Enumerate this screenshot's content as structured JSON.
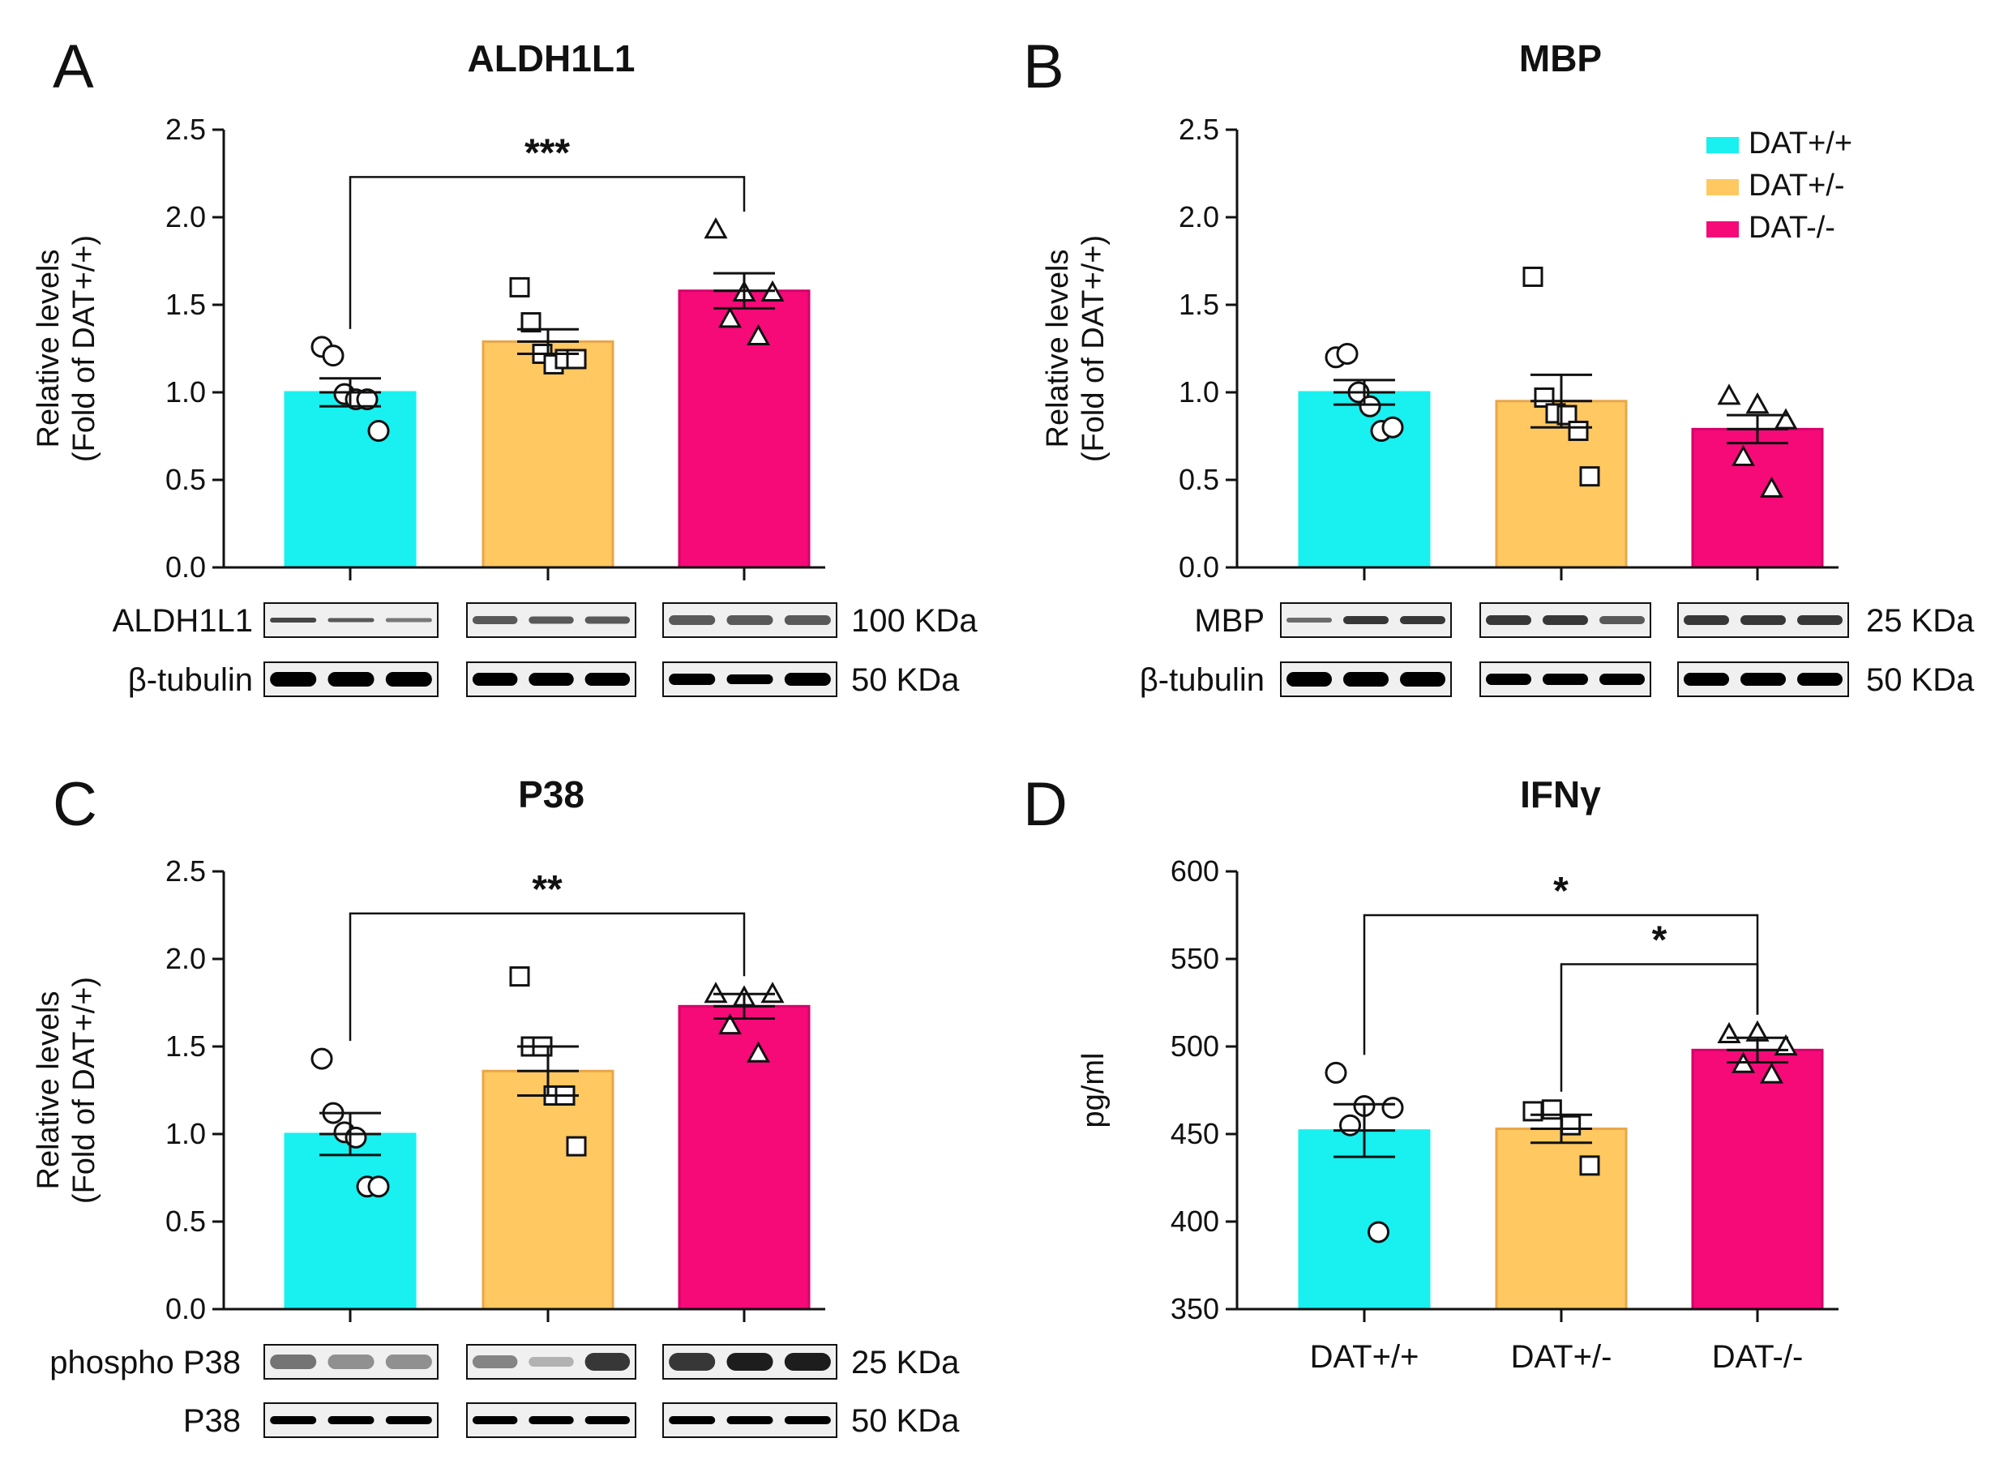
{
  "colors": {
    "wt": "#19F0F0",
    "het": "#FFC861",
    "het_stroke": "#E8A64A",
    "ko": "#F50A78",
    "ko_stroke": "#D6006A",
    "axis": "#111111"
  },
  "legend": {
    "items": [
      "DAT+/+",
      "DAT+/-",
      "DAT-/-"
    ]
  },
  "chart_data": [
    {
      "id": "A",
      "letter": "A",
      "type": "bar",
      "title": "ALDH1L1",
      "ylabel": [
        "Relative levels",
        "(Fold of DAT+/+)"
      ],
      "ylim": [
        0,
        2.5
      ],
      "yticks": [
        "0.0",
        "0.5",
        "1.0",
        "1.5",
        "2.0",
        "2.5"
      ],
      "categories": [
        "DAT+/+",
        "DAT+/-",
        "DAT-/-"
      ],
      "values": [
        1.0,
        1.29,
        1.58
      ],
      "sem": [
        0.08,
        0.07,
        0.1
      ],
      "points": [
        [
          1.26,
          1.21,
          0.99,
          0.96,
          0.96,
          0.78
        ],
        [
          1.6,
          1.4,
          1.22,
          1.16,
          1.19,
          1.19
        ],
        [
          1.93,
          1.57,
          1.57,
          1.42,
          1.32
        ]
      ],
      "comparisons": [
        {
          "from": 0,
          "to": 2,
          "label": "***",
          "y": 2.23
        }
      ],
      "blots": [
        {
          "label": "ALDH1L1",
          "kda": "100 KDa"
        },
        {
          "label": "β-tubulin",
          "kda": "50 KDa"
        }
      ]
    },
    {
      "id": "B",
      "letter": "B",
      "type": "bar",
      "title": "MBP",
      "ylabel": [
        "Relative levels",
        "(Fold of DAT+/+)"
      ],
      "ylim": [
        0,
        2.5
      ],
      "yticks": [
        "0.0",
        "0.5",
        "1.0",
        "1.5",
        "2.0",
        "2.5"
      ],
      "categories": [
        "DAT+/+",
        "DAT+/-",
        "DAT-/-"
      ],
      "values": [
        1.0,
        0.95,
        0.79
      ],
      "sem": [
        0.07,
        0.15,
        0.08
      ],
      "points": [
        [
          1.2,
          1.22,
          1.0,
          0.92,
          0.78,
          0.8
        ],
        [
          1.66,
          0.97,
          0.88,
          0.87,
          0.78,
          0.52
        ],
        [
          0.98,
          0.93,
          0.84,
          0.63,
          0.45
        ]
      ],
      "comparisons": [],
      "blots": [
        {
          "label": "MBP",
          "kda": "25 KDa"
        },
        {
          "label": "β-tubulin",
          "kda": "50 KDa"
        }
      ]
    },
    {
      "id": "C",
      "letter": "C",
      "type": "bar",
      "title": "P38",
      "ylabel": [
        "Relative levels",
        "(Fold of DAT+/+)"
      ],
      "ylim": [
        0,
        2.5
      ],
      "yticks": [
        "0.0",
        "0.5",
        "1.0",
        "1.5",
        "2.0",
        "2.5"
      ],
      "categories": [
        "DAT+/+",
        "DAT+/-",
        "DAT-/-"
      ],
      "values": [
        1.0,
        1.36,
        1.73
      ],
      "sem": [
        0.12,
        0.14,
        0.07
      ],
      "points": [
        [
          1.43,
          1.12,
          1.01,
          0.98,
          0.7,
          0.7
        ],
        [
          1.9,
          1.5,
          1.5,
          1.22,
          1.22,
          0.93
        ],
        [
          1.8,
          1.78,
          1.8,
          1.62,
          1.46
        ]
      ],
      "comparisons": [
        {
          "from": 0,
          "to": 2,
          "label": "**",
          "y": 2.26
        }
      ],
      "blots": [
        {
          "label": "phospho P38",
          "kda": "25 KDa"
        },
        {
          "label": "P38",
          "kda": "50 KDa"
        }
      ]
    },
    {
      "id": "D",
      "letter": "D",
      "type": "bar",
      "title": "IFNγ",
      "ylabel": [
        "pg/ml"
      ],
      "ylim": [
        350,
        600
      ],
      "yticks": [
        "350",
        "400",
        "450",
        "500",
        "550",
        "600"
      ],
      "categories": [
        "DAT+/+",
        "DAT+/-",
        "DAT-/-"
      ],
      "values": [
        452,
        453,
        498
      ],
      "sem": [
        15,
        8,
        7
      ],
      "points": [
        [
          485,
          466,
          465,
          455,
          394
        ],
        [
          463,
          464,
          455,
          432
        ],
        [
          507,
          508,
          500,
          490,
          484
        ]
      ],
      "comparisons": [
        {
          "from": 0,
          "to": 2,
          "label": "*",
          "y": 575
        },
        {
          "from": 1,
          "to": 2,
          "label": "*",
          "y": 547
        }
      ],
      "blots": []
    }
  ]
}
